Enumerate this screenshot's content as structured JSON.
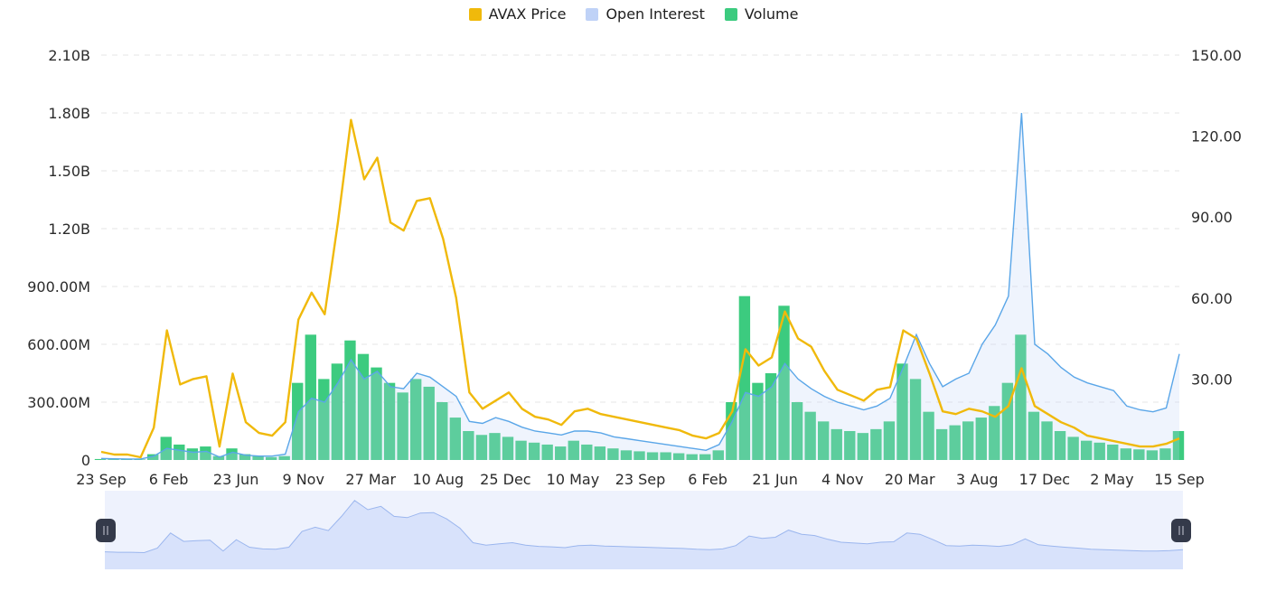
{
  "legend": [
    {
      "label": "AVAX Price",
      "color": "#F0B90B"
    },
    {
      "label": "Open Interest",
      "color": "#BFD2F7"
    },
    {
      "label": "Volume",
      "color": "#3CCB7F"
    }
  ],
  "chart_data": {
    "type": "line",
    "title": "",
    "x_ticks": [
      "23 Sep",
      "6 Feb",
      "23 Jun",
      "9 Nov",
      "27 Mar",
      "10 Aug",
      "25 Dec",
      "10 May",
      "23 Sep",
      "6 Feb",
      "21 Jun",
      "4 Nov",
      "20 Mar",
      "3 Aug",
      "17 Dec",
      "2 May",
      "15 Sep"
    ],
    "y_left": {
      "ticks": [
        "0",
        "300.00M",
        "600.00M",
        "900.00M",
        "1.20B",
        "1.50B",
        "1.80B",
        "2.10B"
      ],
      "min": 0,
      "max": 2100000000
    },
    "y_right": {
      "ticks": [
        "30.00",
        "60.00",
        "90.00",
        "120.00",
        "150.00"
      ],
      "min": 0,
      "max": 150
    },
    "grid": true,
    "legend_position": "top-center",
    "series": [
      {
        "name": "AVAX Price",
        "axis": "right",
        "color": "#F0B90B",
        "values": [
          3,
          2,
          2,
          1,
          12,
          48,
          28,
          30,
          31,
          5,
          32,
          14,
          10,
          9,
          14,
          52,
          62,
          54,
          88,
          126,
          104,
          112,
          88,
          85,
          96,
          97,
          82,
          60,
          25,
          19,
          22,
          25,
          19,
          16,
          15,
          13,
          18,
          19,
          17,
          16,
          15,
          14,
          13,
          12,
          11,
          9,
          8,
          10,
          18,
          41,
          35,
          38,
          55,
          45,
          42,
          33,
          26,
          24,
          22,
          26,
          27,
          48,
          45,
          32,
          18,
          17,
          19,
          18,
          16,
          20,
          34,
          20,
          17,
          14,
          12,
          9,
          8,
          7,
          6,
          5,
          5,
          6,
          8
        ]
      },
      {
        "name": "Open Interest",
        "axis": "left",
        "color": "#5AA6E8",
        "values": [
          8000000,
          6000000,
          5000000,
          5000000,
          20000000,
          60000000,
          50000000,
          40000000,
          45000000,
          15000000,
          40000000,
          25000000,
          20000000,
          20000000,
          30000000,
          250000000,
          320000000,
          300000000,
          400000000,
          520000000,
          420000000,
          460000000,
          380000000,
          370000000,
          450000000,
          430000000,
          380000000,
          330000000,
          200000000,
          190000000,
          220000000,
          200000000,
          170000000,
          150000000,
          140000000,
          130000000,
          150000000,
          150000000,
          140000000,
          120000000,
          110000000,
          100000000,
          90000000,
          80000000,
          70000000,
          60000000,
          50000000,
          80000000,
          200000000,
          350000000,
          330000000,
          380000000,
          500000000,
          420000000,
          370000000,
          330000000,
          300000000,
          280000000,
          260000000,
          280000000,
          320000000,
          480000000,
          650000000,
          500000000,
          380000000,
          420000000,
          450000000,
          600000000,
          700000000,
          850000000,
          1800000000,
          600000000,
          550000000,
          480000000,
          430000000,
          400000000,
          380000000,
          360000000,
          280000000,
          260000000,
          250000000,
          270000000,
          550000000
        ]
      },
      {
        "name": "Volume",
        "axis": "left",
        "color": "#3CCB7F",
        "values": [
          5000000,
          4000000,
          3000000,
          3000000,
          30000000,
          120000000,
          80000000,
          60000000,
          70000000,
          20000000,
          60000000,
          30000000,
          20000000,
          15000000,
          20000000,
          400000000,
          650000000,
          420000000,
          500000000,
          620000000,
          550000000,
          480000000,
          400000000,
          350000000,
          420000000,
          380000000,
          300000000,
          220000000,
          150000000,
          130000000,
          140000000,
          120000000,
          100000000,
          90000000,
          80000000,
          70000000,
          100000000,
          80000000,
          70000000,
          60000000,
          50000000,
          45000000,
          40000000,
          40000000,
          35000000,
          30000000,
          30000000,
          50000000,
          300000000,
          850000000,
          400000000,
          450000000,
          800000000,
          300000000,
          250000000,
          200000000,
          160000000,
          150000000,
          140000000,
          160000000,
          200000000,
          500000000,
          420000000,
          250000000,
          160000000,
          180000000,
          200000000,
          220000000,
          280000000,
          400000000,
          650000000,
          250000000,
          200000000,
          150000000,
          120000000,
          100000000,
          90000000,
          80000000,
          60000000,
          55000000,
          50000000,
          60000000,
          150000000
        ]
      }
    ]
  },
  "navigator": {
    "left_handle_icon": "grip-icon",
    "right_handle_icon": "grip-icon"
  }
}
